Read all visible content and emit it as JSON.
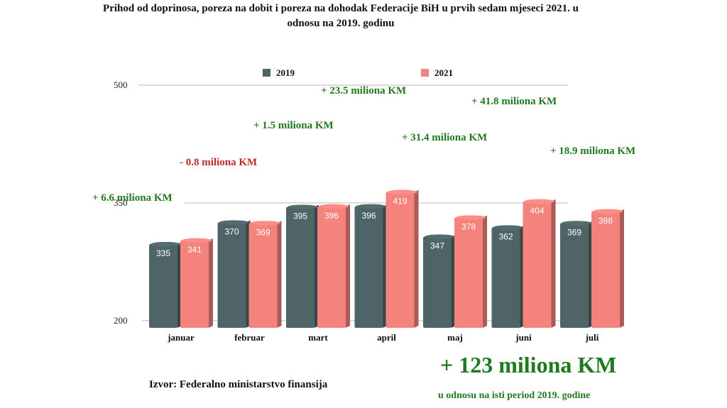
{
  "title": "Prihod od doprinosa, poreza na dobit i poreza na dohodak Federacije BiH u prvih sedam mjeseci 2021. u odnosu na 2019. godinu",
  "source": "Izvor: Federalno ministarstvo finansija",
  "total": {
    "value": "+ 123 miliona KM",
    "subtitle": "u odnosu na isti period 2019. godine"
  },
  "colors": {
    "series_2019": "#4f6466",
    "series_2021": "#f4827d",
    "positive": "#1f7a1f",
    "negative": "#c0282a"
  },
  "chart_data": {
    "type": "bar",
    "categories": [
      "januar",
      "februar",
      "mart",
      "april",
      "maj",
      "juni",
      "juli"
    ],
    "series": [
      {
        "name": "2019",
        "values": [
          335,
          370,
          395,
          396,
          347,
          362,
          369
        ]
      },
      {
        "name": "2021",
        "values": [
          341,
          369,
          396,
          419,
          378,
          404,
          388
        ]
      }
    ],
    "annotations": [
      "+ 6.6 miliona KM",
      "- 0.8 miliona KM",
      "+ 1.5 miliona KM",
      "+ 23.5 miliona KM",
      "+ 31.4 miliona KM",
      "+ 41.8 miliona KM",
      "+ 18.9 miliona KM"
    ],
    "ylim": [
      200,
      500
    ],
    "yticks": [
      200,
      350,
      500
    ],
    "legend_position": "top-center",
    "grid": true
  }
}
